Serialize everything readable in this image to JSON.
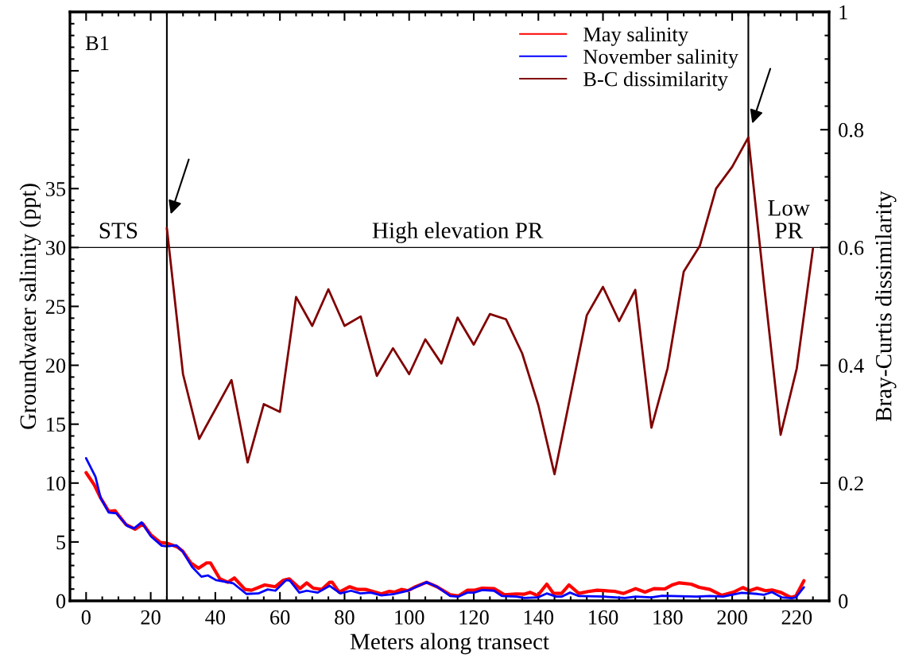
{
  "chart_data": {
    "type": "line",
    "xlabel": "Meters along transect",
    "ylabel": "Groundwater salinity (ppt)",
    "y2label": "Bray-Curtis dissimilarity",
    "xlim": [
      -5,
      230
    ],
    "xticks": [
      0,
      20,
      40,
      60,
      80,
      100,
      120,
      140,
      160,
      180,
      200,
      220
    ],
    "ylim": [
      0,
      50
    ],
    "yticks": [
      0,
      5,
      10,
      15,
      20,
      25,
      30,
      35,
      {
        "value": 40,
        "label": null
      },
      {
        "value": 45,
        "label": null
      },
      {
        "value": 50,
        "label": null
      }
    ],
    "y2lim": [
      0,
      1
    ],
    "y2ticks": [
      0,
      0.2,
      0.4,
      0.6,
      0.8,
      1
    ],
    "legend": "top right",
    "grid": false,
    "series": [
      {
        "name": "May salinity",
        "color": "#ff0000",
        "x": [
          0,
          2.5,
          4.5,
          7.0,
          9.0,
          10.2,
          12.3,
          15.2,
          17.6,
          20.1,
          23.0,
          25.0,
          28.3,
          29.9,
          32.4,
          34.8,
          37.3,
          38.5,
          41.4,
          43.9,
          45.9,
          49.2,
          51.2,
          55.3,
          58.6,
          61.1,
          62.9,
          66.2,
          68.3,
          70.3,
          73.0,
          75.4,
          76.2,
          78.3,
          81.6,
          84.0,
          86.5,
          91.4,
          93.9,
          95.5,
          97.6,
          99.6,
          102.0,
          105.4,
          108.6,
          112.7,
          115.2,
          118.0,
          120.1,
          122.6,
          126.3,
          129.5,
          133.2,
          135.7,
          137.5,
          139.8,
          142.6,
          144.7,
          147.2,
          149.5,
          152.5,
          155.4,
          158.2,
          163.6,
          166.4,
          170.1,
          173.0,
          175.8,
          179.1,
          181.6,
          183.6,
          187.3,
          189.8,
          193.1,
          196.8,
          200.4,
          203.3,
          205.4,
          207.7,
          210.3,
          212.3,
          215.2,
          218.1,
          219.7,
          222.2
        ],
        "values": [
          10.88,
          9.86,
          8.74,
          7.61,
          7.65,
          7.21,
          6.49,
          6.08,
          6.53,
          5.59,
          4.95,
          4.9,
          4.57,
          4.23,
          3.22,
          2.77,
          3.22,
          3.22,
          1.87,
          1.58,
          1.94,
          0.97,
          0.9,
          1.35,
          1.2,
          1.76,
          1.87,
          1.04,
          1.53,
          1.08,
          0.97,
          1.58,
          1.58,
          0.74,
          1.2,
          0.97,
          0.97,
          0.59,
          0.81,
          0.74,
          0.97,
          0.86,
          1.2,
          1.58,
          1.2,
          0.52,
          0.41,
          0.9,
          0.9,
          1.08,
          1.04,
          0.52,
          0.59,
          0.57,
          0.72,
          0.45,
          1.42,
          0.63,
          0.63,
          1.35,
          0.63,
          0.79,
          0.9,
          0.81,
          0.63,
          1.04,
          0.74,
          1.04,
          1.01,
          1.37,
          1.53,
          1.42,
          1.15,
          0.97,
          0.47,
          0.74,
          1.13,
          0.86,
          1.08,
          0.86,
          0.92,
          0.7,
          0.29,
          0.41,
          1.71
        ]
      },
      {
        "name": "November salinity",
        "color": "#0000ff",
        "x": [
          0,
          2.9,
          4.5,
          7.0,
          9.4,
          12.7,
          14.8,
          17.2,
          20.1,
          23.4,
          25.0,
          27.9,
          29.9,
          32.8,
          35.7,
          37.7,
          40.2,
          43.9,
          45.5,
          49.6,
          53.3,
          56.2,
          58.6,
          61.9,
          63.1,
          66.0,
          68.3,
          71.7,
          75.4,
          78.7,
          82.0,
          84.9,
          88.1,
          91.4,
          95.5,
          99.6,
          105.4,
          108.6,
          112.7,
          115.2,
          118.0,
          120.1,
          122.6,
          126.3,
          128.7,
          133.2,
          135.7,
          139.8,
          142.6,
          145.5,
          147.2,
          149.8,
          152.5,
          160.3,
          166.8,
          170.1,
          175.0,
          178.3,
          189.0,
          193.1,
          197.2,
          202.9,
          207.8,
          209.9,
          212.3,
          215.4,
          218.5,
          219.7,
          222.2
        ],
        "values": [
          12.11,
          10.54,
          8.74,
          7.5,
          7.43,
          6.37,
          6.15,
          6.67,
          5.47,
          4.68,
          4.63,
          4.72,
          4.19,
          2.88,
          2.05,
          2.16,
          1.76,
          1.58,
          1.5,
          0.59,
          0.63,
          0.97,
          0.86,
          1.76,
          1.71,
          0.7,
          0.86,
          0.7,
          1.28,
          0.63,
          0.86,
          0.63,
          0.7,
          0.47,
          0.59,
          0.86,
          1.58,
          1.2,
          0.41,
          0.36,
          0.7,
          0.7,
          0.92,
          0.86,
          0.41,
          0.36,
          0.25,
          0.29,
          0.63,
          0.36,
          0.36,
          0.7,
          0.41,
          0.36,
          0.25,
          0.36,
          0.29,
          0.43,
          0.36,
          0.41,
          0.36,
          0.68,
          0.59,
          0.52,
          0.74,
          0.29,
          0.22,
          0.29,
          1.15
        ]
      },
      {
        "name": "B-C dissimilarity",
        "color": "#800000",
        "axis": "y2",
        "x": [
          25,
          30,
          35,
          45,
          50,
          55,
          60,
          65,
          70,
          75,
          80,
          85,
          90,
          95,
          100,
          105,
          110,
          115,
          120,
          125,
          130,
          135,
          140,
          145,
          155,
          160,
          165,
          170,
          175,
          180,
          185,
          190,
          195,
          200,
          205,
          210,
          215,
          220,
          225
        ],
        "values": [
          0.633,
          0.385,
          0.275,
          0.375,
          0.235,
          0.334,
          0.321,
          0.516,
          0.467,
          0.529,
          0.467,
          0.483,
          0.382,
          0.429,
          0.385,
          0.444,
          0.403,
          0.481,
          0.435,
          0.487,
          0.478,
          0.42,
          0.332,
          0.215,
          0.485,
          0.533,
          0.475,
          0.528,
          0.294,
          0.395,
          0.559,
          0.603,
          0.7,
          0.737,
          0.787,
          0.53,
          0.282,
          0.395,
          0.598
        ]
      }
    ],
    "ref_lines": [
      {
        "axis": "y",
        "value": 30,
        "color": "#000000"
      },
      {
        "axis": "x",
        "value": 25,
        "color": "#000000"
      },
      {
        "axis": "x",
        "value": 205,
        "color": "#000000"
      }
    ],
    "annotations": [
      "B1",
      "STS",
      "High elevation PR",
      "Low\nPR"
    ]
  }
}
